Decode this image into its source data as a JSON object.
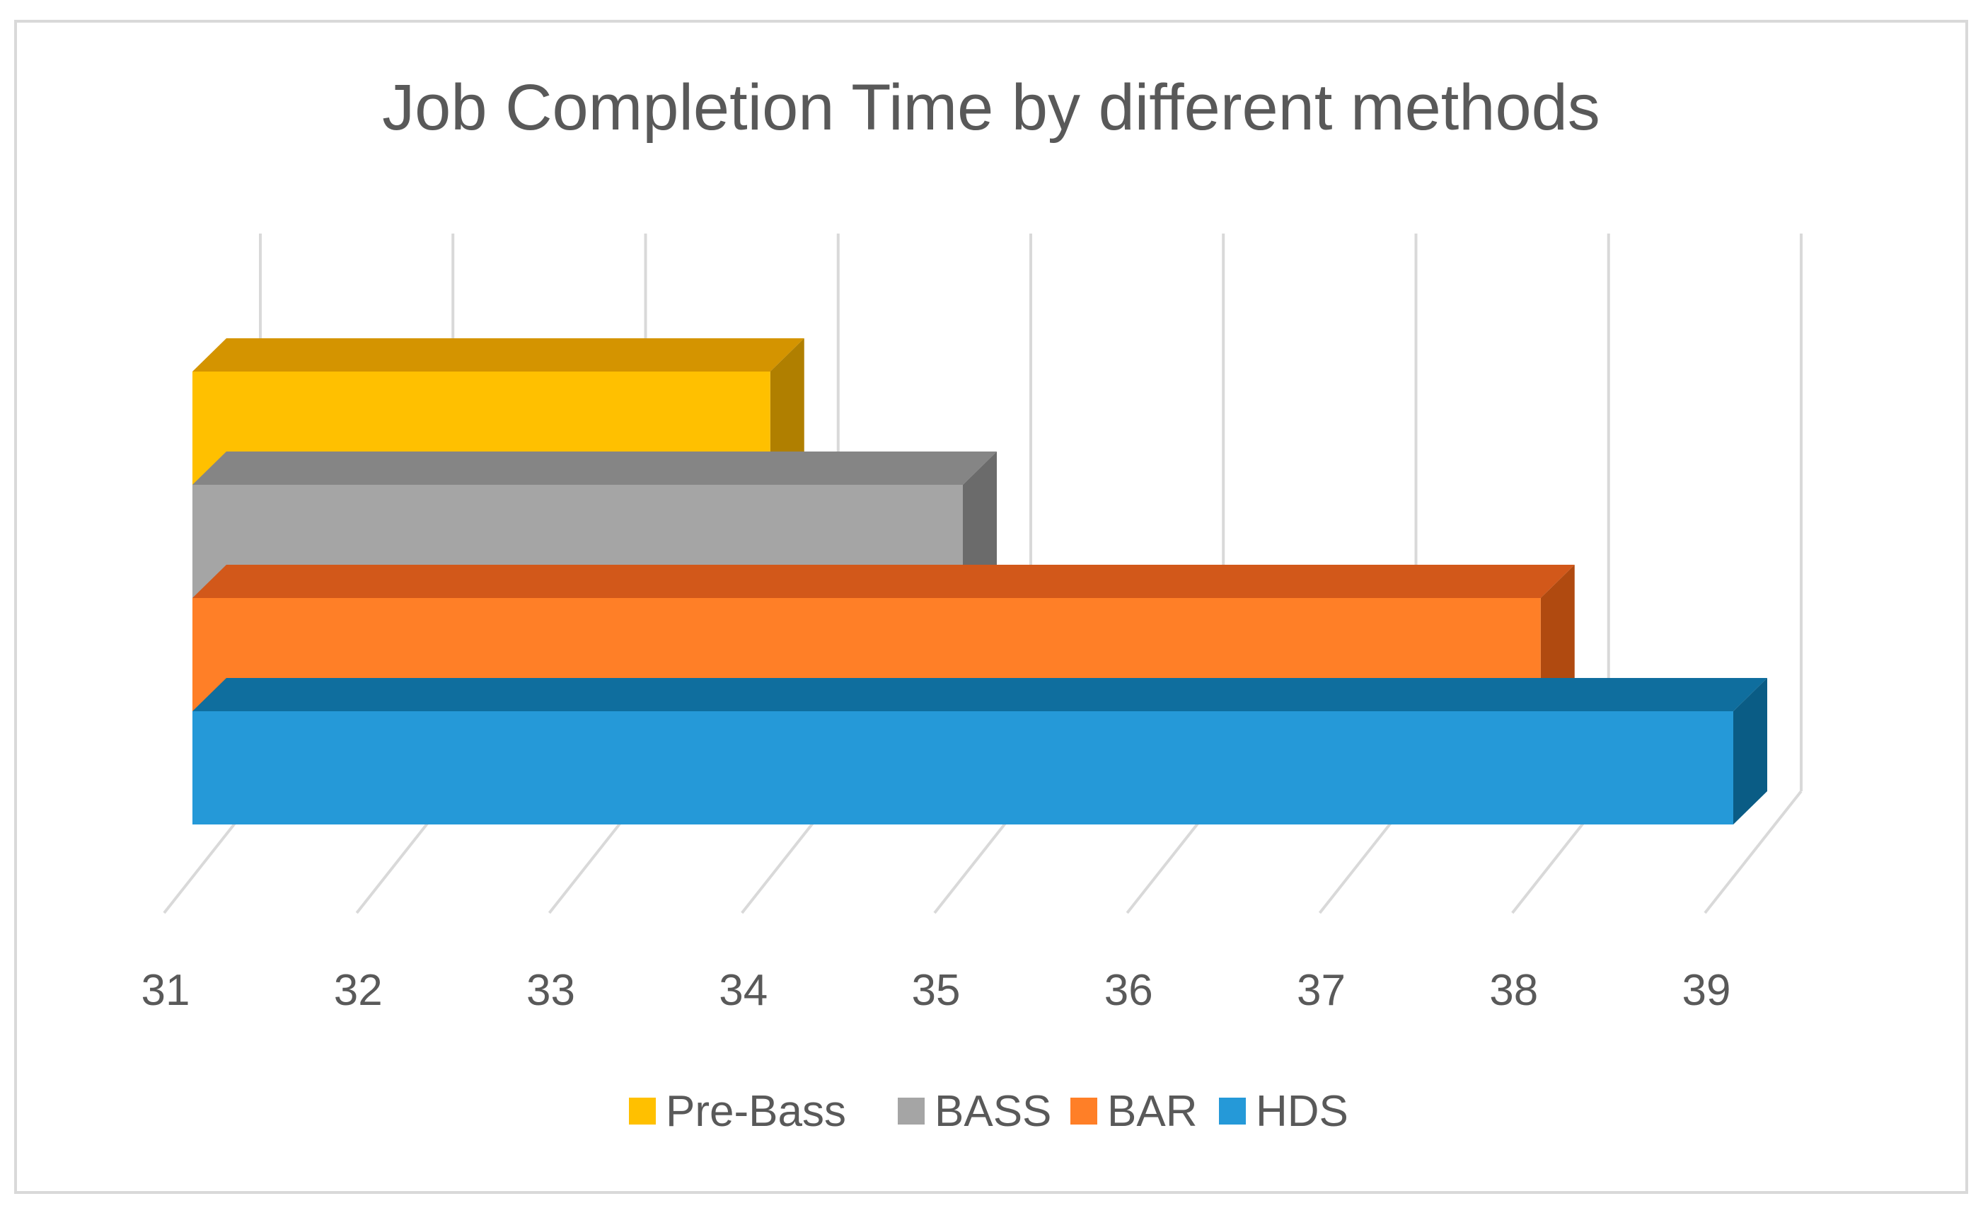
{
  "chart_data": {
    "type": "bar",
    "orientation": "horizontal",
    "style": "3d",
    "title": "Job Completion Time by different methods",
    "xlabel": "",
    "ylabel": "",
    "xlim": [
      31,
      39
    ],
    "ticks": [
      "31",
      "32",
      "33",
      "34",
      "35",
      "36",
      "37",
      "38",
      "39"
    ],
    "grid": true,
    "legend_position": "bottom",
    "series": [
      {
        "name": "Pre-Bass",
        "value": 34.0,
        "color": "#FFC000",
        "top_color": "#D49400",
        "side_color": "#B07F00"
      },
      {
        "name": "BASS",
        "value": 35.0,
        "color": "#A5A5A5",
        "top_color": "#858585",
        "side_color": "#6B6B6B"
      },
      {
        "name": "BAR",
        "value": 38.0,
        "color": "#FF7F27",
        "top_color": "#D2581A",
        "side_color": "#B04A10"
      },
      {
        "name": "HDS",
        "value": 39.0,
        "color": "#2599D8",
        "top_color": "#0F6E9E",
        "side_color": "#0A5C85"
      }
    ]
  }
}
